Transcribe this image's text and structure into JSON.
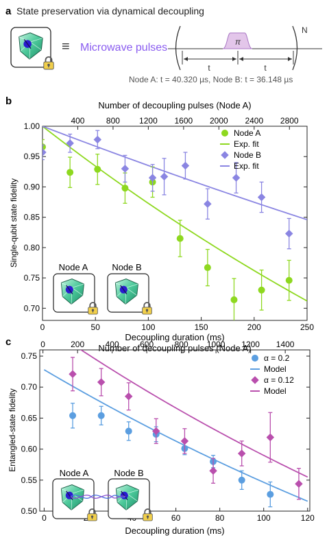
{
  "panel_a": {
    "letter": "a",
    "title": "State preservation via dynamical decoupling",
    "equiv": "≡",
    "pulses_label": "Microwave pulses",
    "pi": "π",
    "t_left": "t",
    "t_right": "t",
    "N": "N",
    "times": "Node A: t = 40.320 µs, Node B: t = 36.148  µs",
    "colors": {
      "pulses_text": "#8a5cf0",
      "pulse_fill": "#e3c6ea",
      "pulse_line": "#a977c4"
    }
  },
  "chart_data": [
    {
      "type": "scatter",
      "panel": "b",
      "top_axis_label": "Number of decoupling pulses (Node A)",
      "top_ticks": [
        "400",
        "800",
        "1200",
        "1600",
        "2000",
        "2400",
        "2800"
      ],
      "xlabel": "Decoupling duration (ms)",
      "ylabel": "Single-qubit state fidelity",
      "x_ticks": [
        "0",
        "50",
        "100",
        "150",
        "200",
        "250"
      ],
      "y_ticks": [
        "0.70",
        "0.75",
        "0.80",
        "0.85",
        "0.90",
        "0.95",
        "1.00"
      ],
      "xlim": [
        0,
        250
      ],
      "ylim": [
        0.68,
        1.0
      ],
      "legend": [
        {
          "label": "Node A",
          "kind": "circle",
          "color": "#8ed81f"
        },
        {
          "label": "Exp. fit",
          "kind": "line",
          "color": "#8ed81f"
        },
        {
          "label": "Node B",
          "kind": "diamond",
          "color": "#8a85e2"
        },
        {
          "label": "Exp. fit",
          "kind": "line",
          "color": "#8a85e2"
        }
      ],
      "legend_position": "top-right",
      "series": [
        {
          "name": "Node A",
          "marker": "circle",
          "color": "#8ed81f",
          "x": [
            0,
            26,
            52,
            78,
            104,
            130,
            156,
            181,
            207,
            233
          ],
          "y": [
            0.966,
            0.924,
            0.929,
            0.898,
            0.908,
            0.815,
            0.767,
            0.714,
            0.73,
            0.746
          ],
          "err": [
            0.012,
            0.025,
            0.025,
            0.025,
            0.025,
            0.03,
            0.03,
            0.035,
            0.033,
            0.033
          ]
        },
        {
          "name": "Node B",
          "marker": "diamond",
          "color": "#8a85e2",
          "x": [
            0,
            26,
            52,
            78,
            104,
            115,
            135,
            156,
            183,
            207,
            233
          ],
          "y": [
            0.957,
            0.972,
            0.978,
            0.93,
            0.915,
            0.917,
            0.935,
            0.872,
            0.915,
            0.883,
            0.823
          ],
          "err": [
            0.012,
            0.015,
            0.015,
            0.022,
            0.022,
            0.03,
            0.022,
            0.025,
            0.025,
            0.025,
            0.025
          ]
        }
      ],
      "fits": [
        {
          "label": "Exp. fit",
          "color": "#8ed81f",
          "y0": 1.0,
          "y1": 0.712
        },
        {
          "label": "Exp. fit",
          "color": "#8a85e2",
          "y0": 1.0,
          "y1": 0.846
        }
      ],
      "inset_labels": [
        "Node A",
        "Node B"
      ]
    },
    {
      "type": "scatter",
      "panel": "c",
      "top_axis_label": "Number of decoupling pulses (Node A)",
      "top_ticks": [
        "0",
        "200",
        "400",
        "600",
        "800",
        "1000",
        "1200",
        "1400"
      ],
      "xlabel": "Decoupling duration (ms)",
      "ylabel": "Entangled-state fidelity",
      "x_ticks": [
        "0",
        "20",
        "40",
        "60",
        "80",
        "100",
        "120"
      ],
      "y_ticks": [
        "0.50",
        "0.55",
        "0.60",
        "0.65",
        "0.70",
        "0.75"
      ],
      "xlim": [
        -2,
        121
      ],
      "ylim": [
        0.5,
        0.76
      ],
      "legend": [
        {
          "label": "α = 0.2",
          "kind": "circle",
          "color": "#5b9ee0"
        },
        {
          "label": "Model",
          "kind": "line",
          "color": "#5b9ee0"
        },
        {
          "label": "α = 0.12",
          "kind": "diamond",
          "color": "#b94fad"
        },
        {
          "label": "Model",
          "kind": "line",
          "color": "#b94fad"
        }
      ],
      "legend_position": "top-right",
      "series": [
        {
          "name": "α = 0.2",
          "marker": "circle",
          "color": "#5b9ee0",
          "x": [
            13,
            26,
            38.5,
            51,
            64,
            77,
            90,
            103
          ],
          "y": [
            0.654,
            0.654,
            0.629,
            0.624,
            0.601,
            0.58,
            0.55,
            0.527
          ],
          "err": [
            0.02,
            0.015,
            0.015,
            0.012,
            0.01,
            0.01,
            0.015,
            0.02
          ]
        },
        {
          "name": "α = 0.12",
          "marker": "diamond",
          "color": "#b94fad",
          "x": [
            13,
            26,
            38.5,
            51,
            64,
            77,
            90,
            103,
            116
          ],
          "y": [
            0.721,
            0.708,
            0.685,
            0.629,
            0.613,
            0.565,
            0.593,
            0.619,
            0.544
          ],
          "err": [
            0.027,
            0.022,
            0.022,
            0.02,
            0.02,
            0.02,
            0.02,
            0.04,
            0.025
          ]
        }
      ],
      "fits": [
        {
          "label": "Model",
          "color": "#5b9ee0",
          "x": [
            0,
            120
          ],
          "y": [
            0.728,
            0.516
          ]
        },
        {
          "label": "Model",
          "color": "#b94fad",
          "x": [
            10,
            120
          ],
          "y": [
            0.776,
            0.555
          ]
        }
      ],
      "inset_labels": [
        "Node A",
        "Node B"
      ]
    }
  ]
}
